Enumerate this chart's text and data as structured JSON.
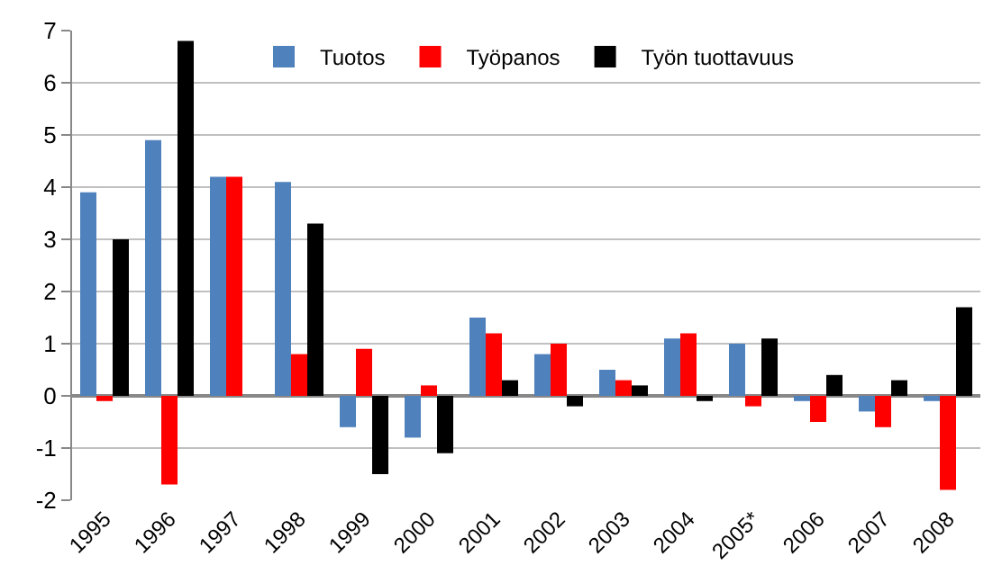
{
  "chart_data": {
    "type": "bar",
    "categories": [
      "1995",
      "1996",
      "1997",
      "1998",
      "1999",
      "2000",
      "2001",
      "2002",
      "2003",
      "2004",
      "2005*",
      "2006",
      "2007",
      "2008"
    ],
    "series": [
      {
        "name": "Tuotos",
        "color": "#4f81bd",
        "values": [
          3.9,
          4.9,
          4.2,
          4.1,
          -0.6,
          -0.8,
          1.5,
          0.8,
          0.5,
          1.1,
          1.0,
          -0.1,
          -0.3,
          -0.1
        ]
      },
      {
        "name": "Työpanos",
        "color": "#ff0000",
        "values": [
          -0.1,
          -1.7,
          4.2,
          0.8,
          0.9,
          0.2,
          1.2,
          1.0,
          0.3,
          1.2,
          -0.2,
          -0.5,
          -0.6,
          -1.8
        ]
      },
      {
        "name": "Työn tuottavuus",
        "color": "#000000",
        "values": [
          3.0,
          6.8,
          0.0,
          3.3,
          -1.5,
          -1.1,
          0.3,
          -0.2,
          0.2,
          -0.1,
          1.1,
          0.4,
          0.3,
          1.7
        ]
      }
    ],
    "ylim": [
      -2,
      7
    ],
    "yticks": [
      -2,
      -1,
      0,
      1,
      2,
      3,
      4,
      5,
      6,
      7
    ],
    "grid": "y",
    "legend": "top"
  }
}
